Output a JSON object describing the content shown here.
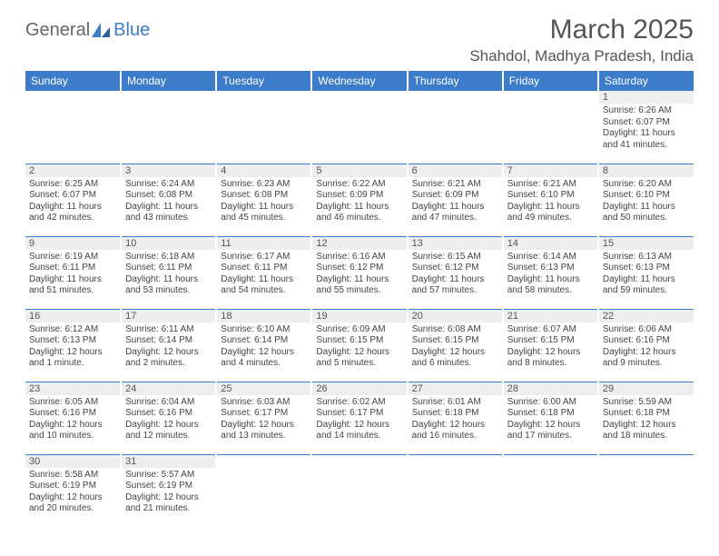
{
  "logo": {
    "textA": "General",
    "textB": "Blue"
  },
  "title": "March 2025",
  "location": "Shahdol, Madhya Pradesh, India",
  "colors": {
    "headerBg": "#3d7cc9",
    "headerText": "#ffffff",
    "dayNumBg": "#eeeeee",
    "border": "#3d7cc9",
    "bodyText": "#444444",
    "titleText": "#555555"
  },
  "dayHeaders": [
    "Sunday",
    "Monday",
    "Tuesday",
    "Wednesday",
    "Thursday",
    "Friday",
    "Saturday"
  ],
  "weeks": [
    [
      {
        "num": "",
        "sunrise": "",
        "sunset": "",
        "daylight": ""
      },
      {
        "num": "",
        "sunrise": "",
        "sunset": "",
        "daylight": ""
      },
      {
        "num": "",
        "sunrise": "",
        "sunset": "",
        "daylight": ""
      },
      {
        "num": "",
        "sunrise": "",
        "sunset": "",
        "daylight": ""
      },
      {
        "num": "",
        "sunrise": "",
        "sunset": "",
        "daylight": ""
      },
      {
        "num": "",
        "sunrise": "",
        "sunset": "",
        "daylight": ""
      },
      {
        "num": "1",
        "sunrise": "Sunrise: 6:26 AM",
        "sunset": "Sunset: 6:07 PM",
        "daylight": "Daylight: 11 hours and 41 minutes."
      }
    ],
    [
      {
        "num": "2",
        "sunrise": "Sunrise: 6:25 AM",
        "sunset": "Sunset: 6:07 PM",
        "daylight": "Daylight: 11 hours and 42 minutes."
      },
      {
        "num": "3",
        "sunrise": "Sunrise: 6:24 AM",
        "sunset": "Sunset: 6:08 PM",
        "daylight": "Daylight: 11 hours and 43 minutes."
      },
      {
        "num": "4",
        "sunrise": "Sunrise: 6:23 AM",
        "sunset": "Sunset: 6:08 PM",
        "daylight": "Daylight: 11 hours and 45 minutes."
      },
      {
        "num": "5",
        "sunrise": "Sunrise: 6:22 AM",
        "sunset": "Sunset: 6:09 PM",
        "daylight": "Daylight: 11 hours and 46 minutes."
      },
      {
        "num": "6",
        "sunrise": "Sunrise: 6:21 AM",
        "sunset": "Sunset: 6:09 PM",
        "daylight": "Daylight: 11 hours and 47 minutes."
      },
      {
        "num": "7",
        "sunrise": "Sunrise: 6:21 AM",
        "sunset": "Sunset: 6:10 PM",
        "daylight": "Daylight: 11 hours and 49 minutes."
      },
      {
        "num": "8",
        "sunrise": "Sunrise: 6:20 AM",
        "sunset": "Sunset: 6:10 PM",
        "daylight": "Daylight: 11 hours and 50 minutes."
      }
    ],
    [
      {
        "num": "9",
        "sunrise": "Sunrise: 6:19 AM",
        "sunset": "Sunset: 6:11 PM",
        "daylight": "Daylight: 11 hours and 51 minutes."
      },
      {
        "num": "10",
        "sunrise": "Sunrise: 6:18 AM",
        "sunset": "Sunset: 6:11 PM",
        "daylight": "Daylight: 11 hours and 53 minutes."
      },
      {
        "num": "11",
        "sunrise": "Sunrise: 6:17 AM",
        "sunset": "Sunset: 6:11 PM",
        "daylight": "Daylight: 11 hours and 54 minutes."
      },
      {
        "num": "12",
        "sunrise": "Sunrise: 6:16 AM",
        "sunset": "Sunset: 6:12 PM",
        "daylight": "Daylight: 11 hours and 55 minutes."
      },
      {
        "num": "13",
        "sunrise": "Sunrise: 6:15 AM",
        "sunset": "Sunset: 6:12 PM",
        "daylight": "Daylight: 11 hours and 57 minutes."
      },
      {
        "num": "14",
        "sunrise": "Sunrise: 6:14 AM",
        "sunset": "Sunset: 6:13 PM",
        "daylight": "Daylight: 11 hours and 58 minutes."
      },
      {
        "num": "15",
        "sunrise": "Sunrise: 6:13 AM",
        "sunset": "Sunset: 6:13 PM",
        "daylight": "Daylight: 11 hours and 59 minutes."
      }
    ],
    [
      {
        "num": "16",
        "sunrise": "Sunrise: 6:12 AM",
        "sunset": "Sunset: 6:13 PM",
        "daylight": "Daylight: 12 hours and 1 minute."
      },
      {
        "num": "17",
        "sunrise": "Sunrise: 6:11 AM",
        "sunset": "Sunset: 6:14 PM",
        "daylight": "Daylight: 12 hours and 2 minutes."
      },
      {
        "num": "18",
        "sunrise": "Sunrise: 6:10 AM",
        "sunset": "Sunset: 6:14 PM",
        "daylight": "Daylight: 12 hours and 4 minutes."
      },
      {
        "num": "19",
        "sunrise": "Sunrise: 6:09 AM",
        "sunset": "Sunset: 6:15 PM",
        "daylight": "Daylight: 12 hours and 5 minutes."
      },
      {
        "num": "20",
        "sunrise": "Sunrise: 6:08 AM",
        "sunset": "Sunset: 6:15 PM",
        "daylight": "Daylight: 12 hours and 6 minutes."
      },
      {
        "num": "21",
        "sunrise": "Sunrise: 6:07 AM",
        "sunset": "Sunset: 6:15 PM",
        "daylight": "Daylight: 12 hours and 8 minutes."
      },
      {
        "num": "22",
        "sunrise": "Sunrise: 6:06 AM",
        "sunset": "Sunset: 6:16 PM",
        "daylight": "Daylight: 12 hours and 9 minutes."
      }
    ],
    [
      {
        "num": "23",
        "sunrise": "Sunrise: 6:05 AM",
        "sunset": "Sunset: 6:16 PM",
        "daylight": "Daylight: 12 hours and 10 minutes."
      },
      {
        "num": "24",
        "sunrise": "Sunrise: 6:04 AM",
        "sunset": "Sunset: 6:16 PM",
        "daylight": "Daylight: 12 hours and 12 minutes."
      },
      {
        "num": "25",
        "sunrise": "Sunrise: 6:03 AM",
        "sunset": "Sunset: 6:17 PM",
        "daylight": "Daylight: 12 hours and 13 minutes."
      },
      {
        "num": "26",
        "sunrise": "Sunrise: 6:02 AM",
        "sunset": "Sunset: 6:17 PM",
        "daylight": "Daylight: 12 hours and 14 minutes."
      },
      {
        "num": "27",
        "sunrise": "Sunrise: 6:01 AM",
        "sunset": "Sunset: 6:18 PM",
        "daylight": "Daylight: 12 hours and 16 minutes."
      },
      {
        "num": "28",
        "sunrise": "Sunrise: 6:00 AM",
        "sunset": "Sunset: 6:18 PM",
        "daylight": "Daylight: 12 hours and 17 minutes."
      },
      {
        "num": "29",
        "sunrise": "Sunrise: 5:59 AM",
        "sunset": "Sunset: 6:18 PM",
        "daylight": "Daylight: 12 hours and 18 minutes."
      }
    ],
    [
      {
        "num": "30",
        "sunrise": "Sunrise: 5:58 AM",
        "sunset": "Sunset: 6:19 PM",
        "daylight": "Daylight: 12 hours and 20 minutes."
      },
      {
        "num": "31",
        "sunrise": "Sunrise: 5:57 AM",
        "sunset": "Sunset: 6:19 PM",
        "daylight": "Daylight: 12 hours and 21 minutes."
      },
      {
        "num": "",
        "sunrise": "",
        "sunset": "",
        "daylight": ""
      },
      {
        "num": "",
        "sunrise": "",
        "sunset": "",
        "daylight": ""
      },
      {
        "num": "",
        "sunrise": "",
        "sunset": "",
        "daylight": ""
      },
      {
        "num": "",
        "sunrise": "",
        "sunset": "",
        "daylight": ""
      },
      {
        "num": "",
        "sunrise": "",
        "sunset": "",
        "daylight": ""
      }
    ]
  ]
}
